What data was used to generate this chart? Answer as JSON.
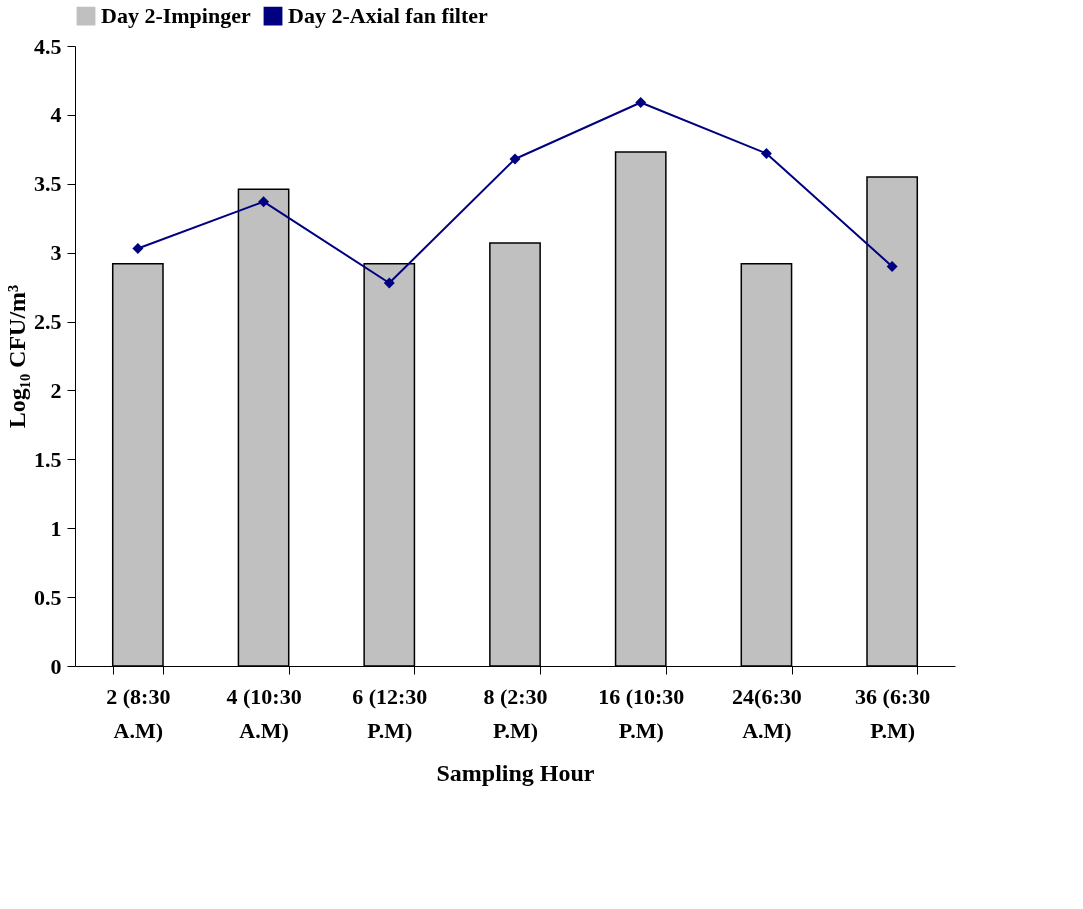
{
  "chart_data": {
    "type": "bar",
    "xlabel": "Sampling Hour",
    "ylabel": "Log₁₀ CFU/m³",
    "categories": [
      "2 (8:30 A.M)",
      "4 (10:30 A.M)",
      "6 (12:30 P.M)",
      "8 (2:30 P.M)",
      "16 (10:30 P.M)",
      "24(6:30 A.M)",
      "36 (6:30 P.M)"
    ],
    "series": [
      {
        "name": "Day 2-Impinger",
        "color": "#c0c0c0",
        "values": [
          2.92,
          3.46,
          2.92,
          3.07,
          3.73,
          2.92,
          3.55
        ]
      },
      {
        "name": "Day 2-Axial fan filter",
        "type": "line",
        "color": "#000080",
        "values": [
          3.03,
          3.37,
          2.78,
          3.68,
          4.09,
          3.72,
          2.9
        ]
      }
    ],
    "ylim": [
      0,
      4.5
    ],
    "yticks": [
      0,
      0.5,
      1,
      1.5,
      2,
      2.5,
      3,
      3.5,
      4,
      4.5
    ],
    "grid": false,
    "legend": "top",
    "marker": "diamond",
    "line_style": "solid"
  }
}
